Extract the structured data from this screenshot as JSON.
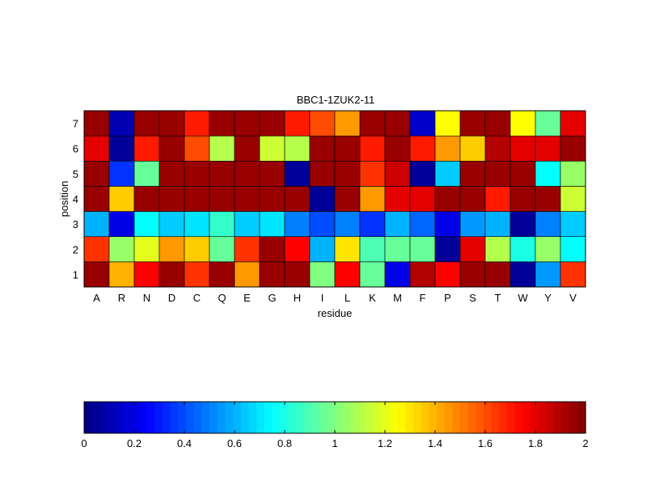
{
  "chart_data": {
    "type": "heatmap",
    "title": "BBC1-1ZUK2-11",
    "xlabel": "residue",
    "ylabel": "position",
    "x_categories": [
      "A",
      "R",
      "N",
      "D",
      "C",
      "Q",
      "E",
      "G",
      "H",
      "I",
      "L",
      "K",
      "M",
      "F",
      "P",
      "S",
      "T",
      "W",
      "Y",
      "V"
    ],
    "y_categories": [
      "1",
      "2",
      "3",
      "4",
      "5",
      "6",
      "7"
    ],
    "values": [
      [
        1.95,
        1.4,
        1.75,
        1.95,
        1.65,
        1.95,
        1.45,
        1.95,
        1.95,
        1.0,
        1.75,
        0.95,
        0.2,
        1.9,
        1.75,
        1.95,
        1.95,
        0.05,
        0.55,
        1.65
      ],
      [
        1.65,
        1.05,
        1.2,
        1.45,
        1.35,
        0.95,
        1.65,
        1.95,
        1.75,
        0.6,
        1.3,
        0.9,
        0.95,
        0.95,
        0.05,
        1.8,
        1.1,
        0.8,
        1.05,
        0.75
      ],
      [
        0.6,
        0.2,
        0.75,
        0.65,
        0.7,
        0.85,
        0.65,
        0.7,
        0.5,
        0.4,
        0.5,
        0.35,
        0.6,
        0.45,
        0.2,
        0.55,
        0.6,
        0.05,
        0.5,
        0.65
      ],
      [
        1.95,
        1.35,
        1.95,
        1.95,
        1.95,
        1.95,
        1.95,
        1.95,
        1.95,
        0.05,
        1.95,
        1.45,
        1.8,
        1.8,
        1.95,
        1.95,
        1.7,
        1.95,
        1.95,
        1.15
      ],
      [
        1.95,
        0.35,
        0.95,
        1.95,
        1.95,
        1.95,
        1.95,
        1.95,
        0.05,
        1.95,
        1.95,
        1.65,
        1.85,
        0.05,
        0.65,
        1.95,
        1.95,
        1.95,
        0.75,
        1.05
      ],
      [
        1.8,
        0.05,
        1.7,
        1.95,
        1.6,
        1.1,
        1.95,
        1.15,
        1.1,
        1.95,
        1.95,
        1.7,
        1.95,
        1.7,
        1.45,
        1.35,
        1.9,
        1.8,
        1.8,
        1.95
      ],
      [
        1.95,
        0.1,
        1.95,
        1.95,
        1.7,
        1.95,
        1.95,
        1.95,
        1.7,
        1.6,
        1.45,
        1.95,
        1.95,
        0.15,
        1.25,
        1.95,
        1.95,
        1.25,
        0.95,
        1.8
      ]
    ],
    "colorbar": {
      "colormap": "jet",
      "range": [
        0,
        2
      ],
      "tick_labels": [
        "0",
        "0.2",
        "0.4",
        "0.6",
        "0.8",
        "1",
        "1.2",
        "1.4",
        "1.6",
        "1.8",
        "2"
      ]
    },
    "grid": true
  }
}
